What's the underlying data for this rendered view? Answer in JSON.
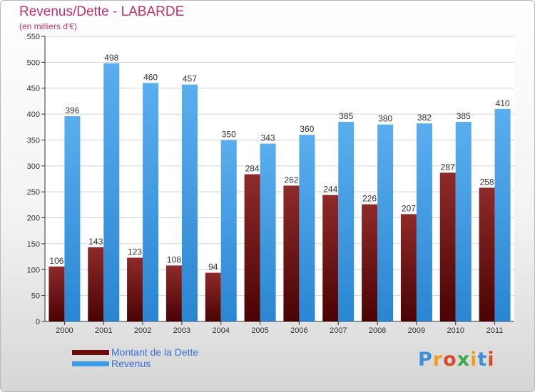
{
  "title": "Revenus/Dette - LABARDE",
  "subtitle": "(en milliers d'€)",
  "brand": "Proxiti",
  "colors": {
    "dette": "#6b0c0c",
    "revenus": "#3c9ce6",
    "title": "#c0306a",
    "legend_text": "#3a6fd8"
  },
  "chart_data": {
    "type": "bar",
    "categories": [
      "2000",
      "2001",
      "2002",
      "2003",
      "2004",
      "2005",
      "2006",
      "2007",
      "2008",
      "2009",
      "2010",
      "2011"
    ],
    "series": [
      {
        "name": "Montant de la Dette",
        "values": [
          106,
          143,
          123,
          108,
          94,
          284,
          262,
          244,
          226,
          207,
          287,
          258
        ]
      },
      {
        "name": "Revenus",
        "values": [
          396,
          498,
          460,
          457,
          350,
          343,
          360,
          385,
          380,
          382,
          385,
          410
        ]
      }
    ],
    "ylim": [
      0,
      550
    ],
    "yticks": [
      0,
      50,
      100,
      150,
      200,
      250,
      300,
      350,
      400,
      450,
      500,
      550
    ],
    "grid": true,
    "legend_position": "bottom-left"
  }
}
